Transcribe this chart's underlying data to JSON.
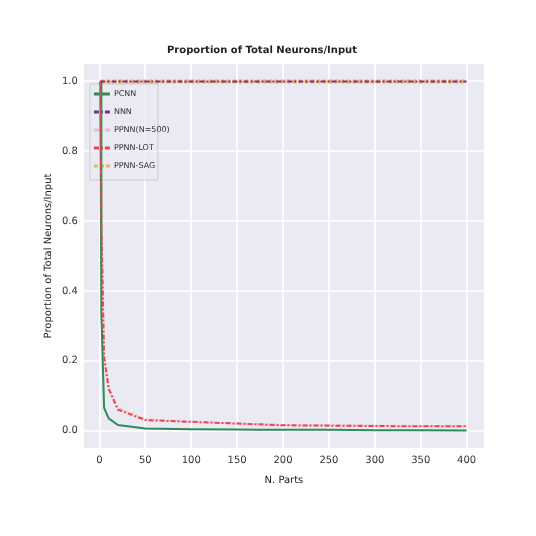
{
  "chart_data": {
    "type": "line",
    "title": "Proportion of Total Neurons/Input",
    "xlabel": "N. Parts",
    "ylabel": "Proportion of Total Neurons/Input",
    "x": [
      1,
      2,
      5,
      10,
      20,
      50,
      100,
      150,
      200,
      250,
      300,
      350,
      400
    ],
    "series": [
      {
        "name": "PCNN",
        "color": "#2e8b57",
        "line_style": "solid",
        "values": [
          1.0,
          0.34,
          0.065,
          0.035,
          0.016,
          0.006,
          0.004,
          0.003,
          0.002,
          0.002,
          0.001,
          0.001,
          0.0
        ]
      },
      {
        "name": "NNN",
        "color": "#7b2d8e",
        "line_style": "dashdot",
        "values": [
          1.0,
          1.0,
          1.0,
          1.0,
          1.0,
          1.0,
          1.0,
          1.0,
          1.0,
          1.0,
          1.0,
          1.0,
          1.0
        ]
      },
      {
        "name": "PPNN(N=500)",
        "color": "#f4b8c6",
        "line_style": "dashdot",
        "values": [
          1.0,
          0.6,
          0.22,
          0.12,
          0.065,
          0.032,
          0.025,
          0.02,
          0.016,
          0.015,
          0.014,
          0.013,
          0.012
        ]
      },
      {
        "name": "PPNN-LOT",
        "color": "#e8474f",
        "line_style": "dashdot",
        "values": [
          1.0,
          0.6,
          0.21,
          0.12,
          0.06,
          0.03,
          0.025,
          0.02,
          0.015,
          0.014,
          0.013,
          0.012,
          0.012
        ]
      },
      {
        "name": "PPNN-SAG",
        "color": "#f0b060",
        "line_style": "dashed",
        "values": [
          1.0,
          1.0,
          1.0,
          1.0,
          1.0,
          1.0,
          1.0,
          1.0,
          1.0,
          1.0,
          1.0,
          1.0,
          1.0
        ]
      }
    ],
    "xlim": [
      -17,
      419
    ],
    "ylim": [
      -0.05,
      1.05
    ],
    "xticks": [
      0,
      50,
      100,
      150,
      200,
      250,
      300,
      350,
      400
    ],
    "yticks": [
      {
        "value": 0,
        "label": "0.0"
      },
      {
        "value": 0.2,
        "label": "0.2"
      },
      {
        "value": 0.4,
        "label": "0.4"
      },
      {
        "value": 0.6,
        "label": "0.6"
      },
      {
        "value": 0.8,
        "label": "0.8"
      },
      {
        "value": 1,
        "label": "1.0"
      }
    ],
    "grid": true,
    "legend": "top left",
    "marker": "none"
  }
}
